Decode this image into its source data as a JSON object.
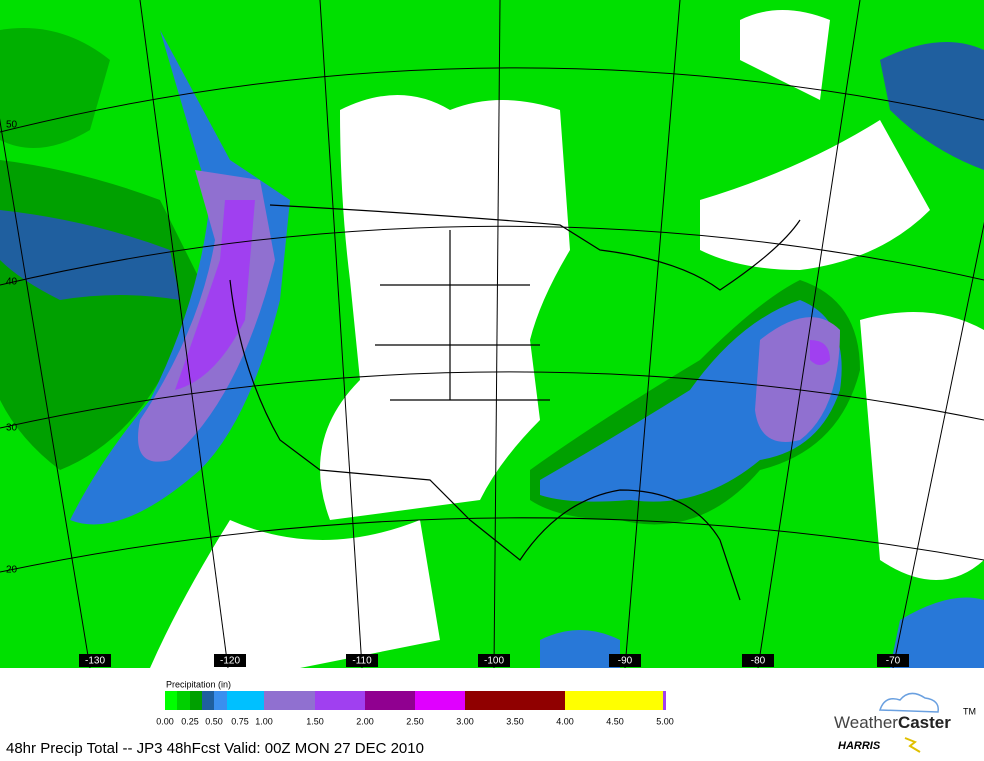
{
  "map": {
    "lat_labels": [
      "50",
      "40",
      "30",
      "20"
    ],
    "lon_labels": [
      "-130",
      "-120",
      "-110",
      "-100",
      "-90",
      "-80",
      "-70"
    ]
  },
  "legend": {
    "title": "Precipitation (in)",
    "ticks": [
      "0.00",
      "0.25",
      "0.50",
      "0.75",
      "1.00",
      "1.50",
      "2.00",
      "2.50",
      "3.00",
      "3.50",
      "4.00",
      "4.50",
      "5.00"
    ]
  },
  "footer": {
    "caption": "48hr Precip Total -- JP3  48hFcst Valid: 00Z MON 27 DEC 2010",
    "logo_weather": "Weather",
    "logo_caster": "Caster",
    "logo_tm": "TM",
    "logo_company": "HARRIS"
  }
}
